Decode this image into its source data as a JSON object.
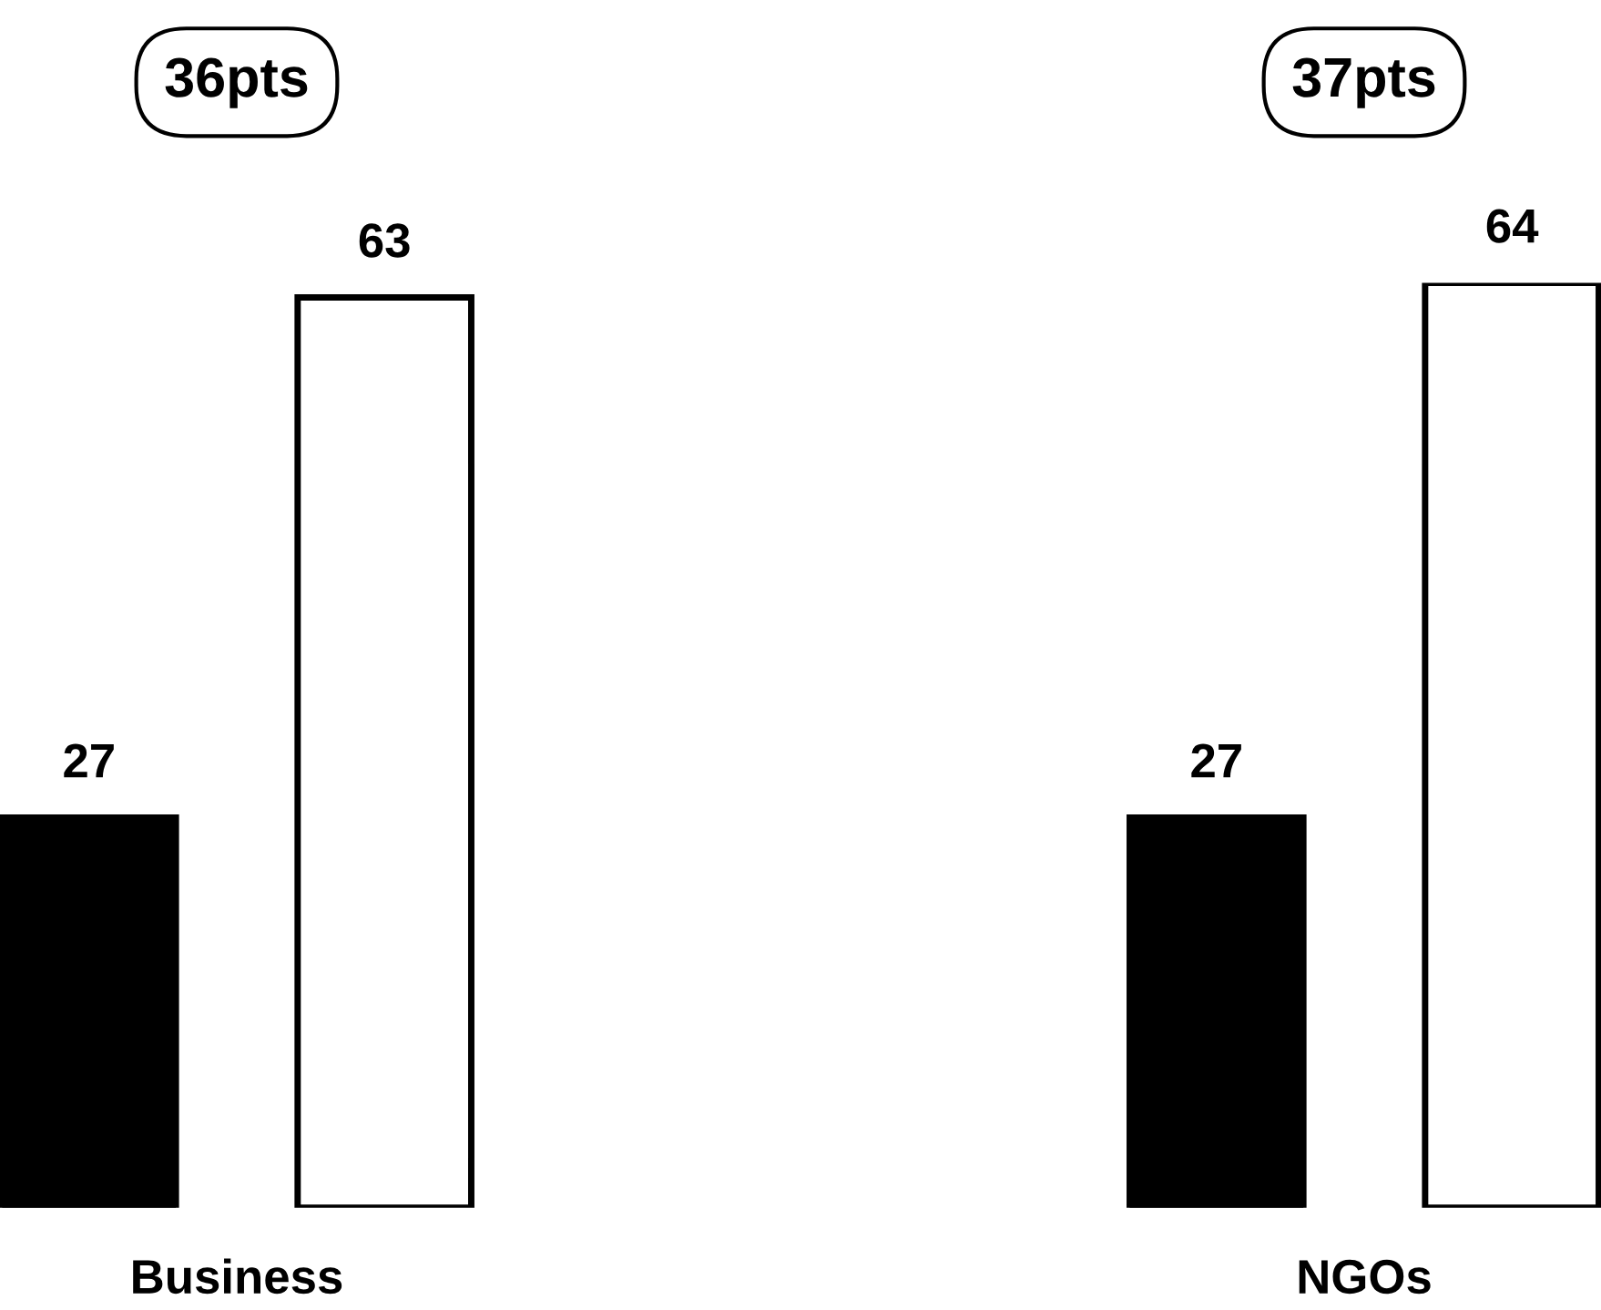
{
  "chart_data": {
    "type": "bar",
    "categories": [
      "Business",
      "NGOs"
    ],
    "series": [
      {
        "color": "#000000",
        "values": [
          27,
          27
        ]
      },
      {
        "color": "#ffffff",
        "values": [
          63,
          64
        ]
      }
    ],
    "data_labels": true,
    "annotations": [
      "36pts",
      "37pts"
    ]
  }
}
